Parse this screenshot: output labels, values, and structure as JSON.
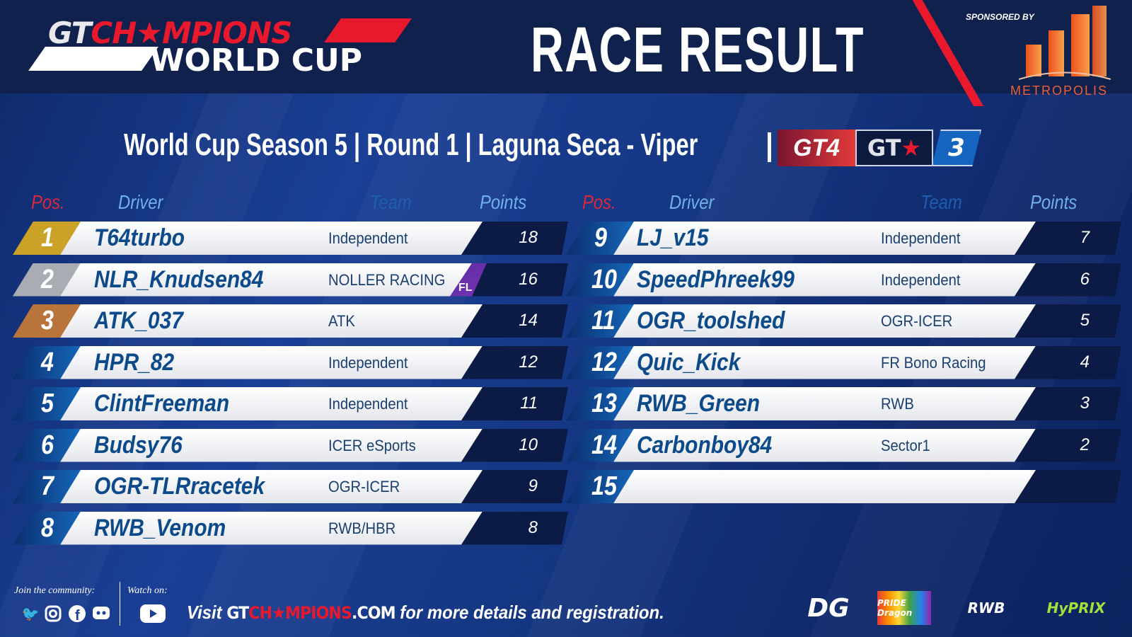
{
  "header": {
    "logo": {
      "line1_gt": "GT",
      "line1_rest": "CH★MPIONS",
      "line2": "WORLD CUP"
    },
    "title_part1": "RACE",
    "title_part2": "RESULT",
    "sponsor_label": "SPONSORED BY",
    "sponsor_name": "METROPOLIS",
    "colors": {
      "accent_red": "#e8192c",
      "header_bg": "#11214d",
      "brand_blue": "#1565c0"
    }
  },
  "subtitle": "World Cup Season 5 | Round 1 | Laguna Seca - Viper",
  "class_badge": {
    "gt4": "GT4",
    "gt_logo": "GT",
    "star": "★",
    "gt3": "3"
  },
  "columns": {
    "pos": "Pos.",
    "driver": "Driver",
    "team": "Team",
    "points": "Points"
  },
  "results_left": [
    {
      "pos": "1",
      "driver": "T64turbo",
      "team": "Independent",
      "points": "18",
      "pos_color": "#c9a227"
    },
    {
      "pos": "2",
      "driver": "NLR_Knudsen84",
      "team": "NOLLER RACING",
      "points": "16",
      "pos_color": "#a9adb3",
      "badge": "FL"
    },
    {
      "pos": "3",
      "driver": "ATK_037",
      "team": "ATK",
      "points": "14",
      "pos_color": "#b8743a"
    },
    {
      "pos": "4",
      "driver": "HPR_82",
      "team": "Independent",
      "points": "12"
    },
    {
      "pos": "5",
      "driver": "ClintFreeman",
      "team": "Independent",
      "points": "11"
    },
    {
      "pos": "6",
      "driver": "Budsy76",
      "team": "ICER eSports",
      "points": "10"
    },
    {
      "pos": "7",
      "driver": "OGR-TLRracetek",
      "team": "OGR-ICER",
      "points": "9"
    },
    {
      "pos": "8",
      "driver": "RWB_Venom",
      "team": "RWB/HBR",
      "points": "8"
    }
  ],
  "results_right": [
    {
      "pos": "9",
      "driver": "LJ_v15",
      "team": "Independent",
      "points": "7"
    },
    {
      "pos": "10",
      "driver": "SpeedPhreek99",
      "team": "Independent",
      "points": "6"
    },
    {
      "pos": "11",
      "driver": "OGR_toolshed",
      "team": "OGR-ICER",
      "points": "5"
    },
    {
      "pos": "12",
      "driver": "Quic_Kick",
      "team": "FR Bono Racing",
      "points": "4"
    },
    {
      "pos": "13",
      "driver": "RWB_Green",
      "team": "RWB",
      "points": "3"
    },
    {
      "pos": "14",
      "driver": "Carbonboy84",
      "team": "Sector1",
      "points": "2"
    },
    {
      "pos": "15",
      "driver": "",
      "team": "",
      "points": ""
    }
  ],
  "footer": {
    "join": "Join the community:",
    "watch": "Watch on:",
    "social_icons": [
      "twitter-icon",
      "instagram-icon",
      "facebook-icon",
      "discord-icon"
    ],
    "watch_icon": "youtube-icon",
    "visit": "Visit",
    "site_a": "GT",
    "site_b": "CH★MPIONS",
    "site_c": ".COM",
    "visit_rest": "for more details and registration.",
    "sponsors": [
      "DG",
      "PRIDE Dragon",
      "RWB",
      "HyPRIX"
    ]
  }
}
